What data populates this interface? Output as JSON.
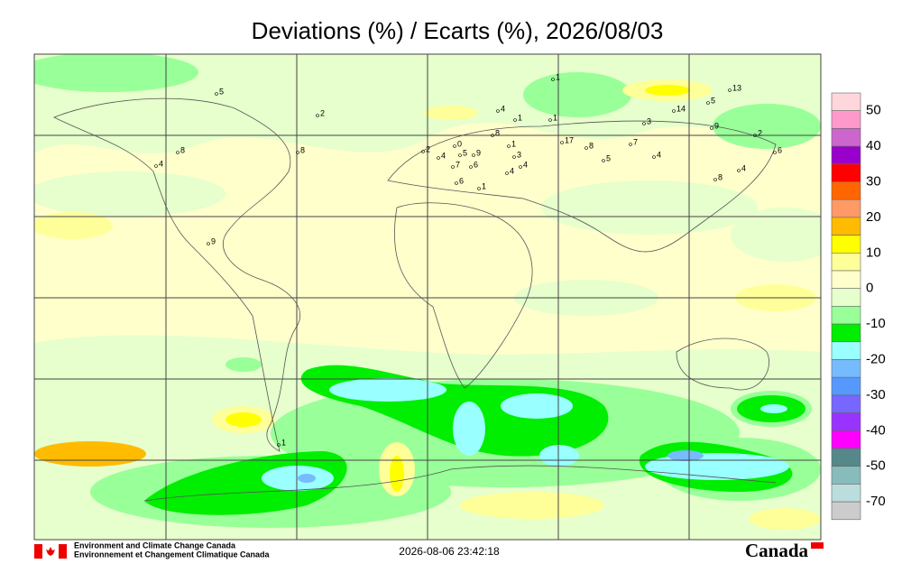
{
  "title": "Deviations (%) / Ecarts (%), 2026/08/03",
  "legend": {
    "colors": [
      "#ffd6dc",
      "#ff99cc",
      "#cc66cc",
      "#9900cc",
      "#ff0000",
      "#ff6600",
      "#ff9966",
      "#ffbb00",
      "#ffff00",
      "#ffff99",
      "#ffffcc",
      "#e6ffcc",
      "#99ff99",
      "#00ee00",
      "#99ffff",
      "#77bbff",
      "#5599ff",
      "#7766ff",
      "#9933ff",
      "#ff00ff",
      "#558888",
      "#88bbbb",
      "#bbdddd",
      "#cccccc"
    ],
    "labels": [
      50,
      40,
      30,
      20,
      10,
      0,
      -10,
      -20,
      -30,
      -40,
      -50,
      -70
    ]
  },
  "stations": [
    5,
    2,
    8,
    4,
    8,
    9,
    4,
    1,
    1,
    1,
    1,
    17,
    8,
    7,
    3,
    14,
    5,
    13,
    9,
    2,
    6,
    4,
    5,
    8,
    4,
    8,
    0,
    2,
    4,
    5,
    9,
    7,
    6,
    3,
    4,
    4,
    6,
    1,
    1
  ],
  "footer": {
    "agency_en": "Environment and Climate Change Canada",
    "agency_fr": "Environnement et Changement Climatique Canada",
    "timestamp": "2026-08-06 23:42:18",
    "wordmark": "Canada"
  }
}
